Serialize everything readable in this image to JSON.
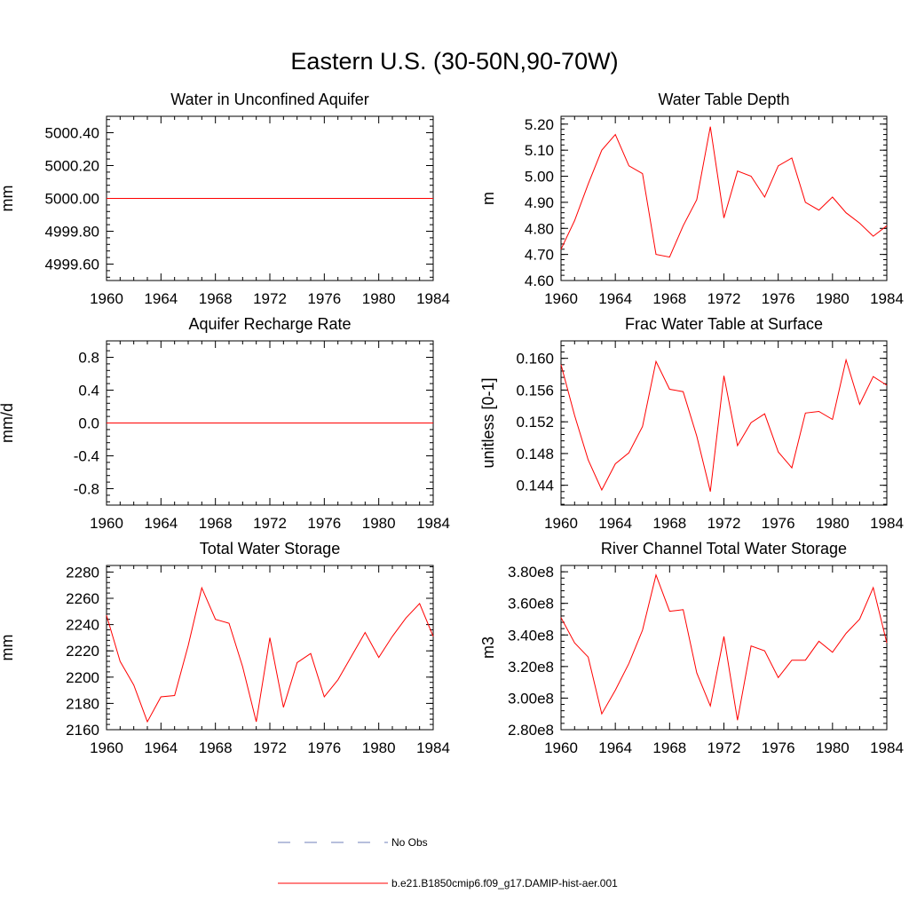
{
  "title": "Eastern U.S. (30-50N,90-70W)",
  "colors": {
    "model": "#ff0000",
    "obs": "#6f7fb8",
    "axis": "#000000"
  },
  "legend": {
    "obs_label": "No Obs",
    "model_label": "b.e21.B1850cmip6.f09_g17.DAMIP-hist-aer.001"
  },
  "chart_data": [
    {
      "type": "line",
      "title": "Water in Unconfined Aquifer",
      "ylabel": "mm",
      "xlim": [
        1960,
        1984
      ],
      "ylim": [
        4999.5,
        5000.5
      ],
      "xticks": [
        1960,
        1964,
        1968,
        1972,
        1976,
        1980,
        1984
      ],
      "yticks": [
        4999.6,
        4999.8,
        5000.0,
        5000.2,
        5000.4
      ],
      "ytick_labels": [
        "4999.60",
        "4999.80",
        "5000.00",
        "5000.20",
        "5000.40"
      ],
      "x": [
        1960,
        1984
      ],
      "values": [
        5000.0,
        5000.0
      ]
    },
    {
      "type": "line",
      "title": "Water Table Depth",
      "ylabel": "m",
      "xlim": [
        1960,
        1984
      ],
      "ylim": [
        4.6,
        5.23
      ],
      "xticks": [
        1960,
        1964,
        1968,
        1972,
        1976,
        1980,
        1984
      ],
      "yticks": [
        4.6,
        4.7,
        4.8,
        4.9,
        5.0,
        5.1,
        5.2
      ],
      "ytick_labels": [
        "4.60",
        "4.70",
        "4.80",
        "4.90",
        "5.00",
        "5.10",
        "5.20"
      ],
      "x": [
        1960,
        1961,
        1962,
        1963,
        1964,
        1965,
        1966,
        1967,
        1968,
        1969,
        1970,
        1971,
        1972,
        1973,
        1974,
        1975,
        1976,
        1977,
        1978,
        1979,
        1980,
        1981,
        1982,
        1983,
        1984
      ],
      "values": [
        4.72,
        4.83,
        4.97,
        5.1,
        5.16,
        5.04,
        5.01,
        4.7,
        4.69,
        4.81,
        4.91,
        5.19,
        4.84,
        5.02,
        5.0,
        4.92,
        5.04,
        5.07,
        4.9,
        4.87,
        4.92,
        4.86,
        4.82,
        4.77,
        4.81
      ]
    },
    {
      "type": "line",
      "title": "Aquifer Recharge Rate",
      "ylabel": "mm/d",
      "xlim": [
        1960,
        1984
      ],
      "ylim": [
        -1.0,
        1.0
      ],
      "xticks": [
        1960,
        1964,
        1968,
        1972,
        1976,
        1980,
        1984
      ],
      "yticks": [
        -0.8,
        -0.4,
        0.0,
        0.4,
        0.8
      ],
      "ytick_labels": [
        "-0.8",
        "-0.4",
        "0.0",
        "0.4",
        "0.8"
      ],
      "x": [
        1960,
        1984
      ],
      "values": [
        0.0,
        0.0
      ]
    },
    {
      "type": "line",
      "title": "Frac Water Table at Surface",
      "ylabel": "unitless [0-1]",
      "xlim": [
        1960,
        1984
      ],
      "ylim": [
        0.1415,
        0.1622
      ],
      "xticks": [
        1960,
        1964,
        1968,
        1972,
        1976,
        1980,
        1984
      ],
      "yticks": [
        0.144,
        0.148,
        0.152,
        0.156,
        0.16
      ],
      "ytick_labels": [
        "0.144",
        "0.148",
        "0.152",
        "0.156",
        "0.160"
      ],
      "x": [
        1960,
        1961,
        1962,
        1963,
        1964,
        1965,
        1966,
        1967,
        1968,
        1969,
        1970,
        1971,
        1972,
        1973,
        1974,
        1975,
        1976,
        1977,
        1978,
        1979,
        1980,
        1981,
        1982,
        1983,
        1984
      ],
      "values": [
        0.1592,
        0.1528,
        0.1472,
        0.1434,
        0.1467,
        0.1481,
        0.1514,
        0.1596,
        0.1561,
        0.1558,
        0.1502,
        0.1432,
        0.1578,
        0.149,
        0.1519,
        0.153,
        0.1482,
        0.1462,
        0.1531,
        0.1533,
        0.1523,
        0.1598,
        0.1542,
        0.1577,
        0.1566
      ]
    },
    {
      "type": "line",
      "title": "Total Water Storage",
      "ylabel": "mm",
      "xlim": [
        1960,
        1984
      ],
      "ylim": [
        2160,
        2285
      ],
      "xticks": [
        1960,
        1964,
        1968,
        1972,
        1976,
        1980,
        1984
      ],
      "yticks": [
        2160,
        2180,
        2200,
        2220,
        2240,
        2260,
        2280
      ],
      "ytick_labels": [
        "2160",
        "2180",
        "2200",
        "2220",
        "2240",
        "2260",
        "2280"
      ],
      "x": [
        1960,
        1961,
        1962,
        1963,
        1964,
        1965,
        1966,
        1967,
        1968,
        1969,
        1970,
        1971,
        1972,
        1973,
        1974,
        1975,
        1976,
        1977,
        1978,
        1979,
        1980,
        1981,
        1982,
        1983,
        1984
      ],
      "values": [
        2247,
        2212,
        2194,
        2166,
        2185,
        2186,
        2224,
        2268,
        2244,
        2241,
        2208,
        2166,
        2230,
        2177,
        2211,
        2218,
        2185,
        2198,
        2216,
        2234,
        2215,
        2231,
        2245,
        2256,
        2231
      ]
    },
    {
      "type": "line",
      "title": "River Channel Total Water Storage",
      "ylabel": "m3",
      "xlim": [
        1960,
        1984
      ],
      "ylim": [
        280000000.0,
        384000000.0
      ],
      "xticks": [
        1960,
        1964,
        1968,
        1972,
        1976,
        1980,
        1984
      ],
      "yticks": [
        280000000.0,
        300000000.0,
        320000000.0,
        340000000.0,
        360000000.0,
        380000000.0
      ],
      "ytick_labels": [
        "2.80e8",
        "3.00e8",
        "3.20e8",
        "3.40e8",
        "3.60e8",
        "3.80e8"
      ],
      "x": [
        1960,
        1961,
        1962,
        1963,
        1964,
        1965,
        1966,
        1967,
        1968,
        1969,
        1970,
        1971,
        1972,
        1973,
        1974,
        1975,
        1976,
        1977,
        1978,
        1979,
        1980,
        1981,
        1982,
        1983,
        1984
      ],
      "values": [
        351000000.0,
        335000000.0,
        326000000.0,
        290000000.0,
        305000000.0,
        322000000.0,
        343000000.0,
        378000000.0,
        355000000.0,
        356000000.0,
        316000000.0,
        295000000.0,
        339000000.0,
        286000000.0,
        333000000.0,
        330000000.0,
        313000000.0,
        324000000.0,
        324000000.0,
        336000000.0,
        329000000.0,
        341000000.0,
        350000000.0,
        370000000.0,
        335000000.0
      ]
    }
  ]
}
